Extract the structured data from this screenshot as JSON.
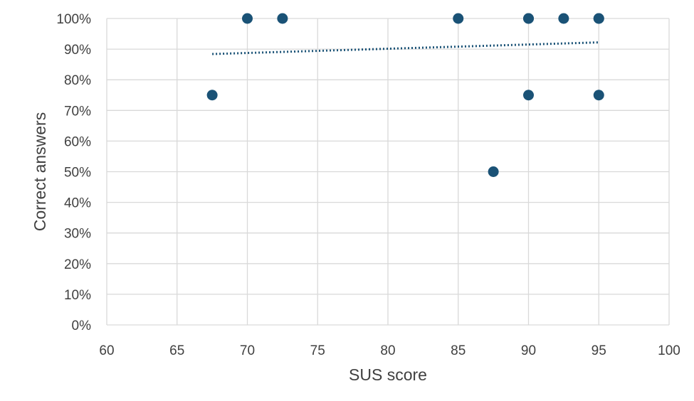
{
  "chart_data": {
    "type": "scatter",
    "title": "",
    "xlabel": "SUS score",
    "ylabel": "Correct answers",
    "xlim": [
      60,
      100
    ],
    "ylim": [
      0,
      1
    ],
    "x_ticks": [
      60,
      65,
      70,
      75,
      80,
      85,
      90,
      95,
      100
    ],
    "y_ticks": [
      0,
      0.1,
      0.2,
      0.3,
      0.4,
      0.5,
      0.6,
      0.7,
      0.8,
      0.9,
      1.0
    ],
    "y_tick_labels": [
      "0%",
      "10%",
      "20%",
      "30%",
      "40%",
      "50%",
      "60%",
      "70%",
      "80%",
      "90%",
      "100%"
    ],
    "grid": "both",
    "legend": "none",
    "marker_color": "#1a5276",
    "trendline": {
      "type": "linear",
      "style": "dotted",
      "color": "#1a5276",
      "x": [
        67.5,
        95
      ],
      "y": [
        0.884,
        0.922
      ]
    },
    "series": [
      {
        "points": [
          {
            "x": 67.5,
            "y": 0.75
          },
          {
            "x": 70,
            "y": 1.0
          },
          {
            "x": 72.5,
            "y": 1.0
          },
          {
            "x": 85,
            "y": 1.0
          },
          {
            "x": 87.5,
            "y": 0.5
          },
          {
            "x": 90,
            "y": 1.0
          },
          {
            "x": 90,
            "y": 1.0
          },
          {
            "x": 90,
            "y": 0.75
          },
          {
            "x": 92.5,
            "y": 1.0
          },
          {
            "x": 95,
            "y": 1.0
          },
          {
            "x": 95,
            "y": 1.0
          },
          {
            "x": 95,
            "y": 0.75
          }
        ]
      }
    ]
  }
}
